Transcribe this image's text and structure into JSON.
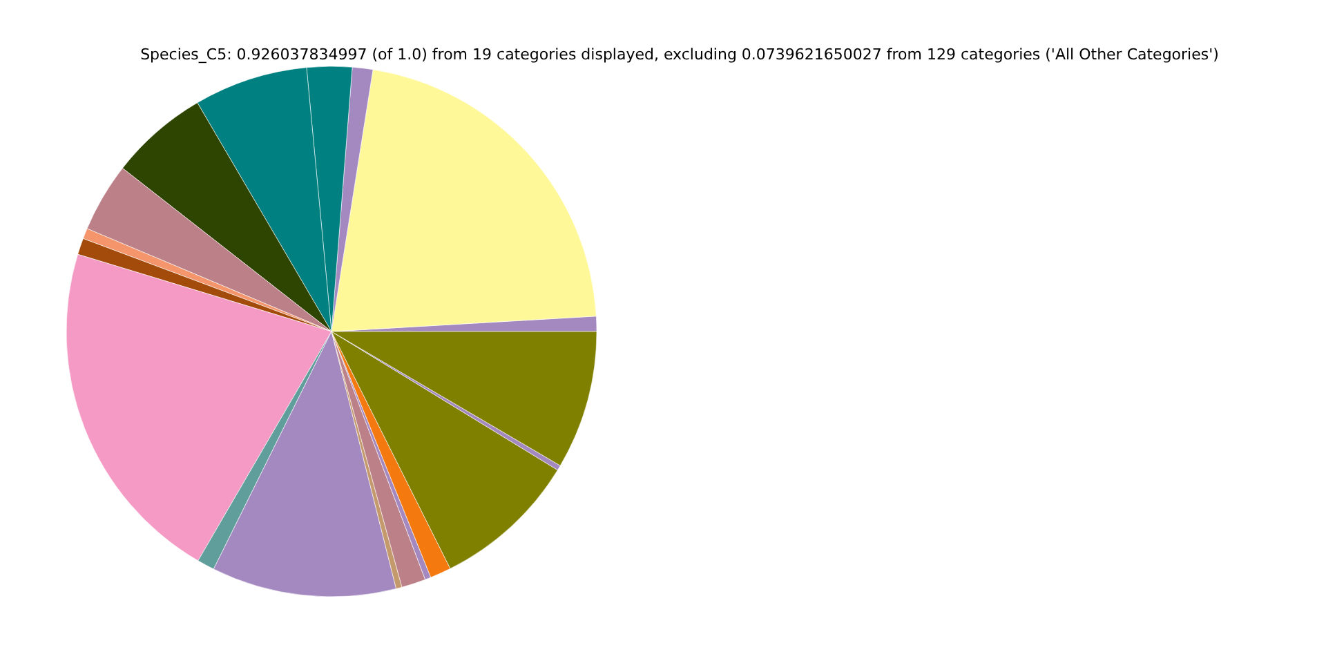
{
  "chart_data": {
    "type": "pie",
    "title": "Species_C5: 0.926037834997 (of 1.0) from 19 categories displayed, excluding 0.0739621650027 from 129 categories ('All Other Categories')",
    "categories": [
      null,
      null,
      null,
      null,
      null,
      null,
      null,
      null,
      null,
      null,
      null,
      null,
      null,
      null,
      null,
      null,
      null,
      null,
      null
    ],
    "values": [
      0.92,
      21.58,
      1.25,
      2.75,
      6.94,
      6.0,
      4.22,
      0.64,
      1.0,
      21.31,
      1.06,
      11.25,
      0.36,
      1.47,
      0.36,
      1.28,
      8.86,
      0.31,
      8.44
    ],
    "colors": [
      "#a389c0",
      "#fff899",
      "#a389c0",
      "#008080",
      "#008080",
      "#2d4500",
      "#bc8088",
      "#f4956c",
      "#a34b0a",
      "#f49ac4",
      "#5f9e9a",
      "#a389c0",
      "#c49a6c",
      "#bc8088",
      "#a389c0",
      "#f47a0f",
      "#808000",
      "#a389c0",
      "#808000"
    ]
  }
}
